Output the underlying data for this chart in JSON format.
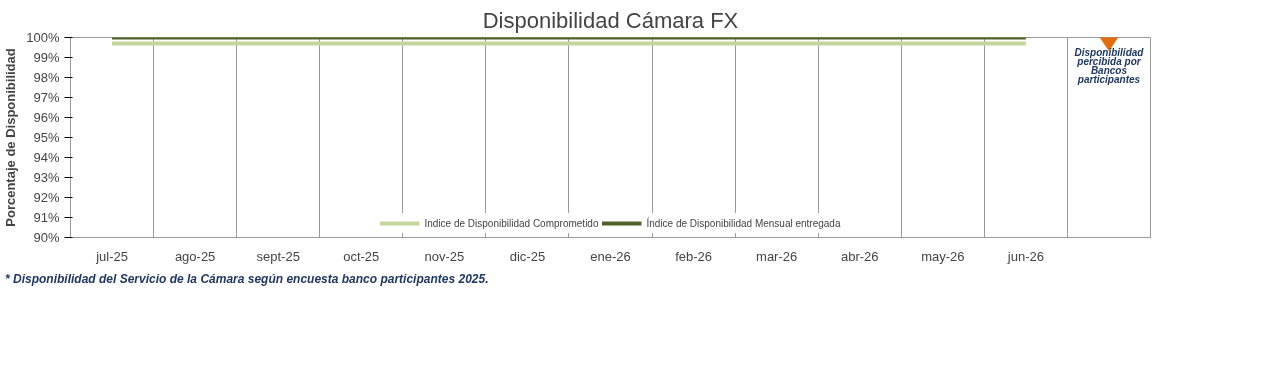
{
  "chart_data": {
    "type": "line",
    "title": "Disponibilidad Cámara FX",
    "ylabel": "Porcentaje de Disponibilidad",
    "categories": [
      "jul-25",
      "ago-25",
      "sept-25",
      "oct-25",
      "nov-25",
      "dic-25",
      "ene-26",
      "feb-26",
      "mar-26",
      "abr-26",
      "may-26",
      "jun-26",
      null
    ],
    "series": [
      {
        "name": "Indice de Disponibilidad Comprometido",
        "color": "#c4d79b",
        "values": [
          99.7,
          99.7,
          99.7,
          99.7,
          99.7,
          99.7,
          99.7,
          99.7,
          99.7,
          99.7,
          99.7,
          99.7,
          null
        ]
      },
      {
        "name": "Índice de Disponibilidad Mensual entregada",
        "color": "#4f6228",
        "values": [
          100,
          100,
          100,
          100,
          100,
          100,
          100,
          100,
          100,
          100,
          100,
          100,
          null
        ]
      },
      {
        "name": "Disponibilidad percibida por Bancos participantes",
        "type": "scatter",
        "marker": "diamond",
        "color": "#e46c0a",
        "values": [
          null,
          null,
          null,
          null,
          null,
          null,
          null,
          null,
          null,
          null,
          null,
          null,
          100
        ]
      }
    ],
    "ylim": [
      90,
      100
    ],
    "yticks": [
      {
        "value": 90,
        "label": "90%"
      },
      {
        "value": 91,
        "label": "91%"
      },
      {
        "value": 92,
        "label": "92%"
      },
      {
        "value": 93,
        "label": "93%"
      },
      {
        "value": 94,
        "label": "94%"
      },
      {
        "value": 95,
        "label": "95%"
      },
      {
        "value": 96,
        "label": "96%"
      },
      {
        "value": 97,
        "label": "97%"
      },
      {
        "value": 98,
        "label": "98%"
      },
      {
        "value": 99,
        "label": "99%"
      },
      {
        "value": 100,
        "label": "100%"
      }
    ],
    "grid": "x",
    "legend": "bottom",
    "annotations": [
      "*  Disponibilidad del Servicio de la Cámara según encuesta banco participantes 2025."
    ]
  }
}
